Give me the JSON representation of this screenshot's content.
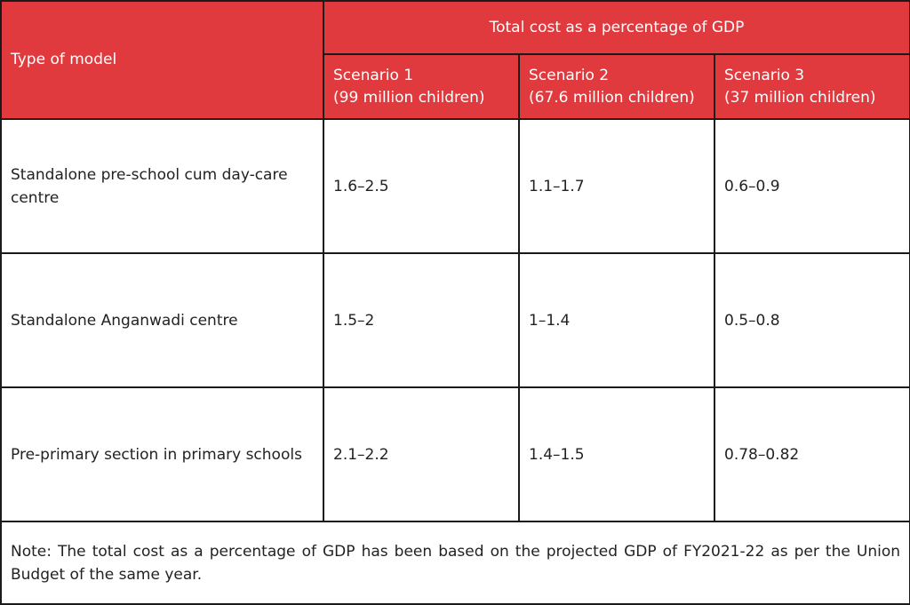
{
  "header": {
    "type_of_model": "Type of model",
    "group_title": "Total cost as a percentage of GDP",
    "scenarios": [
      {
        "line1": "Scenario 1",
        "line2": "(99 million children)"
      },
      {
        "line1": "Scenario 2",
        "line2": "(67.6 million children)"
      },
      {
        "line1": "Scenario 3",
        "line2": "(37 million children)"
      }
    ]
  },
  "rows": [
    {
      "model": "Standalone pre-school cum day-care centre",
      "s1": "1.6–2.5",
      "s2": "1.1–1.7",
      "s3": "0.6–0.9"
    },
    {
      "model": "Standalone Anganwadi centre",
      "s1": "1.5–2",
      "s2": "1–1.4",
      "s3": "0.5–0.8"
    },
    {
      "model": "Pre-primary section in primary schools",
      "s1": "2.1–2.2",
      "s2": "1.4–1.5",
      "s3": "0.78–0.82"
    }
  ],
  "note": "Note: The total cost as a percentage of GDP has been based on the projected GDP of FY2021-22 as per the Union Budget of the same year.",
  "colors": {
    "header_bg": "#e03a3e",
    "header_text": "#ffffff",
    "border": "#1a1a1a"
  }
}
